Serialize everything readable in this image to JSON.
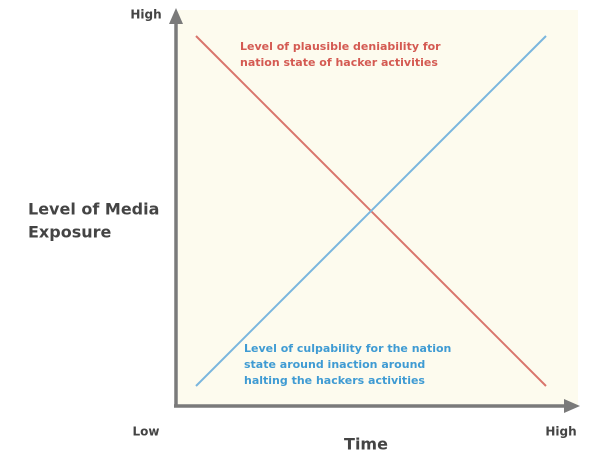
{
  "y_axis": {
    "label_lines": [
      "Level of Media",
      "Exposure"
    ],
    "high": "High"
  },
  "origin": {
    "label": "Low"
  },
  "x_axis": {
    "label": "Time",
    "high": "High"
  },
  "annotations": [
    {
      "lines": [
        "Level of plausible deniability for",
        "nation state of hacker activities"
      ]
    },
    {
      "lines": [
        "Level of culpability for the nation",
        "state around inaction around",
        "halting the hackers activities"
      ]
    }
  ]
}
